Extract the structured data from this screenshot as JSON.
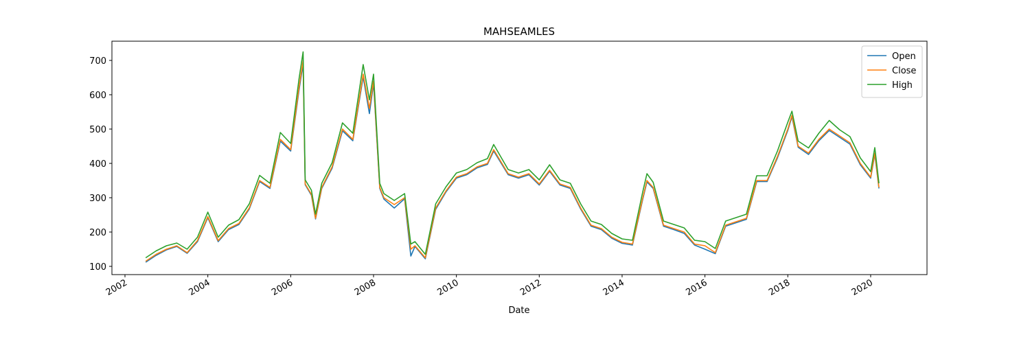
{
  "chart_data": {
    "type": "line",
    "title": "MAHSEAMLES",
    "x_label": "Date",
    "x": [
      2002.5,
      2002.75,
      2003.0,
      2003.25,
      2003.5,
      2003.75,
      2004.0,
      2004.25,
      2004.5,
      2004.75,
      2005.0,
      2005.25,
      2005.5,
      2005.75,
      2006.0,
      2006.2,
      2006.3,
      2006.35,
      2006.5,
      2006.6,
      2006.75,
      2007.0,
      2007.25,
      2007.5,
      2007.75,
      2007.9,
      2008.0,
      2008.15,
      2008.25,
      2008.5,
      2008.75,
      2008.9,
      2009.0,
      2009.25,
      2009.5,
      2009.75,
      2010.0,
      2010.25,
      2010.5,
      2010.75,
      2010.9,
      2011.25,
      2011.5,
      2011.75,
      2012.0,
      2012.25,
      2012.5,
      2012.75,
      2013.0,
      2013.25,
      2013.5,
      2013.75,
      2014.0,
      2014.25,
      2014.5,
      2014.6,
      2014.75,
      2015.0,
      2015.25,
      2015.5,
      2015.75,
      2016.0,
      2016.25,
      2016.5,
      2016.75,
      2017.0,
      2017.25,
      2017.5,
      2017.75,
      2018.0,
      2018.1,
      2018.25,
      2018.5,
      2018.75,
      2019.0,
      2019.25,
      2019.5,
      2019.75,
      2020.0,
      2020.1,
      2020.2
    ],
    "series": [
      {
        "name": "Open",
        "color": "#1f77b4",
        "values": [
          112,
          132,
          148,
          158,
          138,
          172,
          242,
          172,
          207,
          222,
          267,
          347,
          327,
          465,
          436,
          612,
          690,
          338,
          307,
          238,
          327,
          386,
          495,
          466,
          652,
          545,
          632,
          327,
          296,
          270,
          297,
          130,
          158,
          122,
          266,
          317,
          357,
          367,
          387,
          397,
          436,
          367,
          357,
          367,
          337,
          377,
          337,
          327,
          267,
          217,
          207,
          182,
          167,
          162,
          296,
          346,
          327,
          217,
          207,
          196,
          162,
          150,
          137,
          217,
          227,
          237,
          347,
          347,
          416,
          496,
          536,
          447,
          426,
          466,
          496,
          476,
          456,
          396,
          357,
          426,
          327
        ]
      },
      {
        "name": "Close",
        "color": "#ff7f0e",
        "values": [
          115,
          135,
          150,
          160,
          140,
          175,
          245,
          175,
          210,
          225,
          270,
          350,
          330,
          470,
          440,
          620,
          700,
          340,
          310,
          240,
          330,
          390,
          500,
          470,
          660,
          560,
          640,
          330,
          300,
          280,
          300,
          150,
          160,
          125,
          270,
          320,
          360,
          370,
          390,
          400,
          440,
          370,
          360,
          370,
          340,
          380,
          340,
          330,
          270,
          220,
          210,
          185,
          170,
          165,
          300,
          350,
          330,
          220,
          210,
          200,
          165,
          160,
          140,
          220,
          230,
          240,
          350,
          350,
          420,
          500,
          540,
          450,
          430,
          470,
          500,
          480,
          460,
          400,
          360,
          430,
          330
        ]
      },
      {
        "name": "High",
        "color": "#2ca02c",
        "values": [
          125,
          145,
          160,
          168,
          150,
          185,
          258,
          185,
          220,
          236,
          282,
          365,
          342,
          490,
          458,
          645,
          725,
          352,
          322,
          252,
          342,
          402,
          518,
          488,
          688,
          585,
          660,
          342,
          312,
          292,
          312,
          165,
          172,
          135,
          282,
          332,
          372,
          382,
          402,
          414,
          455,
          382,
          372,
          382,
          352,
          396,
          352,
          342,
          282,
          232,
          222,
          196,
          180,
          176,
          318,
          370,
          345,
          232,
          222,
          212,
          176,
          172,
          152,
          232,
          242,
          252,
          364,
          364,
          436,
          520,
          552,
          465,
          445,
          488,
          525,
          498,
          478,
          416,
          376,
          446,
          342
        ]
      }
    ],
    "xlim": [
      2001.685,
      2021.36
    ],
    "xticks": [
      2002,
      2004,
      2006,
      2008,
      2010,
      2012,
      2014,
      2016,
      2018,
      2020
    ],
    "ylim": [
      76,
      756
    ],
    "yticks": [
      100,
      200,
      300,
      400,
      500,
      600,
      700
    ],
    "legend": "upper right"
  }
}
